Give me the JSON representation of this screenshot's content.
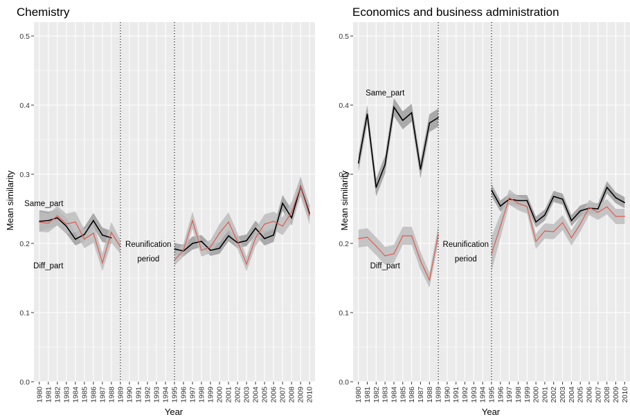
{
  "chart_data": [
    {
      "type": "line",
      "title": "Chemistry",
      "xlabel": "Year",
      "ylabel": "Mean similarity",
      "ylim": [
        0.0,
        0.52
      ],
      "yticks": [
        "0.0",
        "0.1",
        "0.2",
        "0.3",
        "0.4",
        "0.5"
      ],
      "categories": [
        "1980",
        "1981",
        "1982",
        "1983",
        "1984",
        "1985",
        "1986",
        "1987",
        "1988",
        "1989",
        "1990",
        "1991",
        "1992",
        "1993",
        "1994",
        "1995",
        "1996",
        "1997",
        "1998",
        "1999",
        "2000",
        "2001",
        "2002",
        "2003",
        "2004",
        "2005",
        "2006",
        "2007",
        "2008",
        "2009",
        "2010"
      ],
      "series": [
        {
          "name": "Same_part",
          "color": "#000000",
          "band_color": "#9e9e9e",
          "values": [
            0.232,
            0.233,
            0.237,
            0.225,
            0.206,
            0.213,
            0.233,
            0.212,
            0.208,
            null,
            null,
            null,
            null,
            null,
            null,
            0.192,
            0.189,
            0.2,
            0.203,
            0.19,
            0.193,
            0.211,
            0.201,
            0.204,
            0.222,
            0.207,
            0.212,
            0.258,
            0.237,
            0.282,
            0.243
          ],
          "lower": [
            0.217,
            0.221,
            0.226,
            0.214,
            0.197,
            0.203,
            0.223,
            0.202,
            0.199,
            null,
            null,
            null,
            null,
            null,
            null,
            0.184,
            0.181,
            0.191,
            0.195,
            0.182,
            0.185,
            0.203,
            0.193,
            0.196,
            0.212,
            0.197,
            0.202,
            0.247,
            0.226,
            0.27,
            0.232
          ],
          "upper": [
            0.248,
            0.246,
            0.249,
            0.237,
            0.216,
            0.224,
            0.244,
            0.223,
            0.218,
            null,
            null,
            null,
            null,
            null,
            null,
            0.201,
            0.198,
            0.21,
            0.212,
            0.199,
            0.202,
            0.22,
            0.21,
            0.213,
            0.233,
            0.218,
            0.223,
            0.27,
            0.249,
            0.295,
            0.255
          ]
        },
        {
          "name": "Diff_part",
          "color": "#e05a4f",
          "band_color": "#bdbdbd",
          "values": [
            0.231,
            0.229,
            0.24,
            0.228,
            0.231,
            0.206,
            0.215,
            0.172,
            0.216,
            0.195,
            null,
            null,
            null,
            null,
            null,
            0.176,
            0.19,
            0.233,
            0.19,
            0.195,
            0.215,
            0.231,
            0.203,
            0.17,
            0.208,
            0.228,
            0.232,
            0.225,
            0.245,
            0.282,
            0.24
          ],
          "lower": [
            0.217,
            0.216,
            0.226,
            0.214,
            0.216,
            0.193,
            0.201,
            0.16,
            0.201,
            0.185,
            null,
            null,
            null,
            null,
            null,
            0.168,
            0.181,
            0.221,
            0.181,
            0.186,
            0.203,
            0.218,
            0.192,
            0.16,
            0.196,
            0.215,
            0.22,
            0.212,
            0.23,
            0.268,
            0.227
          ],
          "upper": [
            0.246,
            0.243,
            0.254,
            0.243,
            0.246,
            0.22,
            0.229,
            0.186,
            0.231,
            0.205,
            null,
            null,
            null,
            null,
            null,
            0.186,
            0.2,
            0.246,
            0.2,
            0.205,
            0.228,
            0.245,
            0.215,
            0.181,
            0.221,
            0.242,
            0.246,
            0.238,
            0.26,
            0.297,
            0.253
          ]
        }
      ],
      "vlines": [
        "1989",
        "1995"
      ],
      "annotations": [
        {
          "text": "Same_part",
          "x": "1980.5",
          "y": 0.258
        },
        {
          "text": "Diff_part",
          "x": "1981",
          "y": 0.168
        },
        {
          "text": "Reunification",
          "x": "1992.1",
          "y": 0.199
        },
        {
          "text": "period",
          "x": "1992.1",
          "y": 0.178
        }
      ]
    },
    {
      "type": "line",
      "title": "Economics and business administration",
      "xlabel": "Year",
      "ylabel": "Mean similarity",
      "ylim": [
        0.0,
        0.52
      ],
      "yticks": [
        "0.0",
        "0.1",
        "0.2",
        "0.3",
        "0.4",
        "0.5"
      ],
      "categories": [
        "1980",
        "1981",
        "1982",
        "1983",
        "1984",
        "1985",
        "1986",
        "1987",
        "1988",
        "1989",
        "1990",
        "1991",
        "1992",
        "1993",
        "1994",
        "1995",
        "1996",
        "1997",
        "1998",
        "1999",
        "2000",
        "2001",
        "2002",
        "2003",
        "2004",
        "2005",
        "2006",
        "2007",
        "2008",
        "2009",
        "2010"
      ],
      "series": [
        {
          "name": "Same_part",
          "color": "#000000",
          "band_color": "#9e9e9e",
          "values": [
            0.316,
            0.387,
            0.281,
            0.314,
            0.397,
            0.378,
            0.389,
            0.307,
            0.374,
            0.382,
            null,
            null,
            null,
            null,
            null,
            0.277,
            0.254,
            0.264,
            0.262,
            0.262,
            0.231,
            0.241,
            0.268,
            0.264,
            0.233,
            0.247,
            0.251,
            0.25,
            0.281,
            0.266,
            0.259
          ],
          "lower": [
            0.303,
            0.374,
            0.268,
            0.301,
            0.384,
            0.365,
            0.376,
            0.294,
            0.361,
            0.369,
            null,
            null,
            null,
            null,
            null,
            0.268,
            0.246,
            0.256,
            0.254,
            0.254,
            0.223,
            0.233,
            0.26,
            0.256,
            0.225,
            0.239,
            0.243,
            0.242,
            0.272,
            0.258,
            0.251
          ],
          "upper": [
            0.329,
            0.4,
            0.294,
            0.327,
            0.41,
            0.391,
            0.402,
            0.32,
            0.387,
            0.395,
            null,
            null,
            null,
            null,
            null,
            0.286,
            0.262,
            0.272,
            0.27,
            0.27,
            0.239,
            0.249,
            0.276,
            0.272,
            0.241,
            0.255,
            0.259,
            0.258,
            0.29,
            0.274,
            0.267
          ]
        },
        {
          "name": "Diff_part",
          "color": "#e05a4f",
          "band_color": "#bdbdbd",
          "values": [
            0.207,
            0.209,
            0.196,
            0.182,
            0.185,
            0.211,
            0.211,
            0.175,
            0.147,
            0.213,
            null,
            null,
            null,
            null,
            null,
            0.185,
            0.225,
            0.266,
            0.258,
            0.253,
            0.203,
            0.218,
            0.217,
            0.23,
            0.208,
            0.228,
            0.252,
            0.245,
            0.253,
            0.239,
            0.239
          ],
          "lower": [
            0.194,
            0.196,
            0.183,
            0.169,
            0.172,
            0.198,
            0.198,
            0.162,
            0.136,
            0.2,
            null,
            null,
            null,
            null,
            null,
            0.16,
            0.208,
            0.256,
            0.248,
            0.243,
            0.192,
            0.207,
            0.206,
            0.219,
            0.197,
            0.217,
            0.241,
            0.234,
            0.242,
            0.228,
            0.228
          ],
          "upper": [
            0.22,
            0.222,
            0.209,
            0.195,
            0.198,
            0.224,
            0.224,
            0.188,
            0.158,
            0.226,
            null,
            null,
            null,
            null,
            null,
            0.21,
            0.242,
            0.278,
            0.268,
            0.263,
            0.214,
            0.229,
            0.228,
            0.241,
            0.219,
            0.239,
            0.263,
            0.256,
            0.264,
            0.25,
            0.25
          ]
        }
      ],
      "vlines": [
        "1989",
        "1995"
      ],
      "annotations": [
        {
          "text": "Same_part",
          "x": "1983",
          "y": 0.418
        },
        {
          "text": "Diff_part",
          "x": "1983",
          "y": 0.168
        },
        {
          "text": "Reunification",
          "x": "1992.1",
          "y": 0.199
        },
        {
          "text": "period",
          "x": "1992.1",
          "y": 0.178
        }
      ]
    }
  ]
}
